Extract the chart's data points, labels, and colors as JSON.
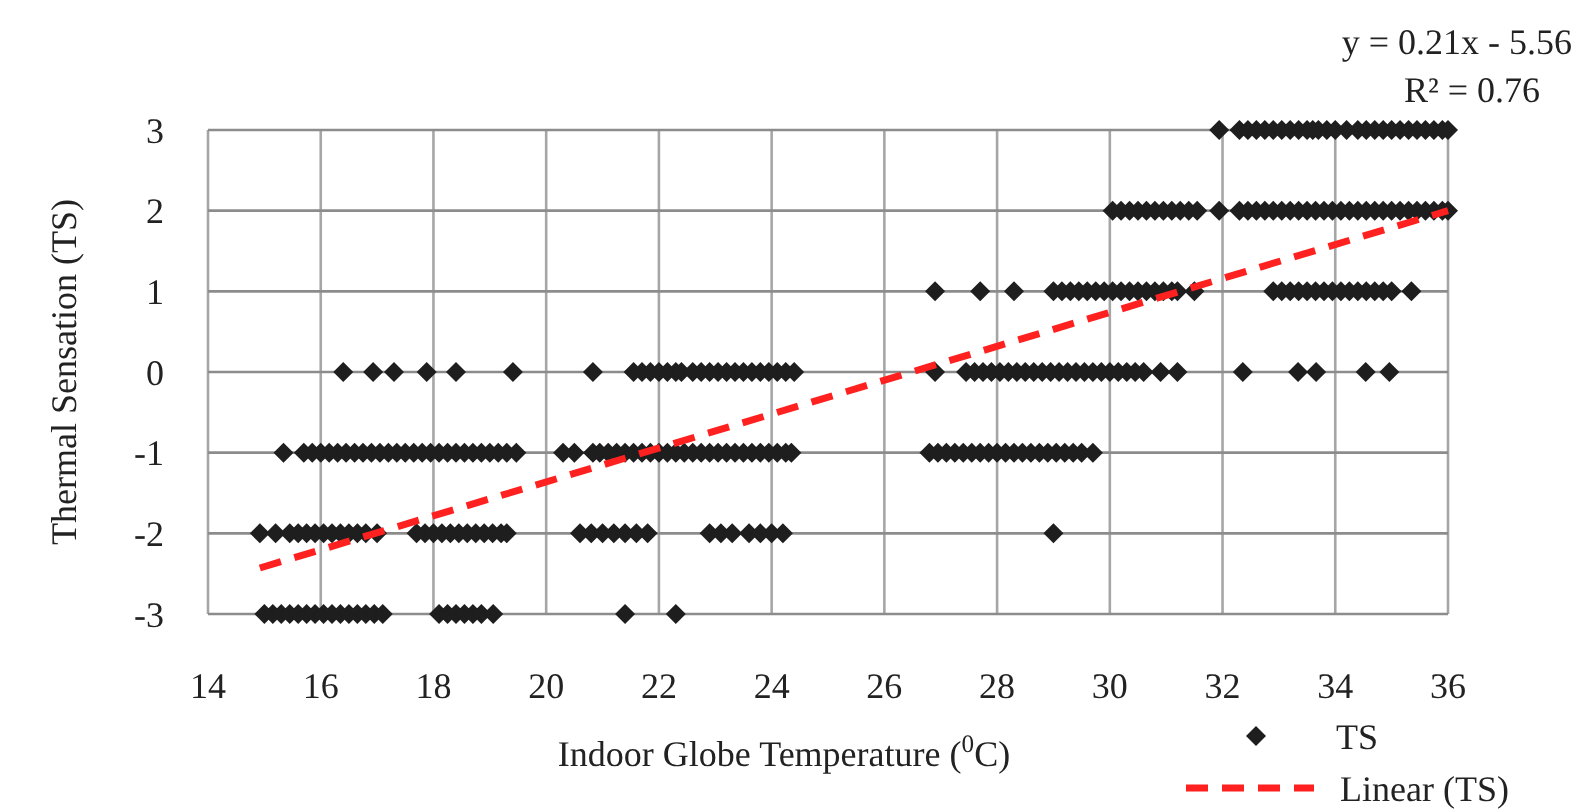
{
  "chart_data": {
    "type": "scatter",
    "xlabel": "Indoor Globe Temperature  ($^{0}$C)",
    "ylabel": "Thermal Sensation (TS)",
    "xlim": [
      14,
      36
    ],
    "xticks": [
      14,
      16,
      18,
      20,
      22,
      24,
      26,
      28,
      30,
      32,
      34,
      36
    ],
    "ylim": [
      -3,
      3
    ],
    "yticks": [
      -3,
      -2,
      -1,
      0,
      1,
      2,
      3
    ],
    "grid": true,
    "legend": "bottom right",
    "annotations": [
      "y = 0.21x - 5.56",
      "R² = 0.76"
    ],
    "series": [
      {
        "name": "TS",
        "marker": "diamond",
        "color": "#1e1e1e",
        "x": [
          31.94,
          32.3,
          32.45,
          32.6,
          32.75,
          32.9,
          33.05,
          33.2,
          33.35,
          33.5,
          33.6,
          33.7,
          33.85,
          34.0,
          34.2,
          34.4,
          34.55,
          34.7,
          34.85,
          35.0,
          35.15,
          35.3,
          35.45,
          35.6,
          35.75,
          35.9,
          36.0,
          30.05,
          30.2,
          30.35,
          30.5,
          30.65,
          30.8,
          30.95,
          31.1,
          31.25,
          31.4,
          31.55,
          31.94,
          32.3,
          32.45,
          32.6,
          32.75,
          32.9,
          33.05,
          33.2,
          33.35,
          33.5,
          33.65,
          33.8,
          33.95,
          34.1,
          34.25,
          34.4,
          34.55,
          34.7,
          34.85,
          35.0,
          35.15,
          35.3,
          35.45,
          35.6,
          35.75,
          35.9,
          36.0,
          26.9,
          27.7,
          28.3,
          29.0,
          29.15,
          29.3,
          29.45,
          29.6,
          29.75,
          29.9,
          30.05,
          30.2,
          30.35,
          30.5,
          30.65,
          30.8,
          30.95,
          31.1,
          31.2,
          31.5,
          32.9,
          33.05,
          33.2,
          33.35,
          33.5,
          33.65,
          33.8,
          33.95,
          34.1,
          34.25,
          34.4,
          34.55,
          34.7,
          34.85,
          35.0,
          35.35,
          16.4,
          16.93,
          17.3,
          17.88,
          18.4,
          19.41,
          20.83,
          21.55,
          21.7,
          21.85,
          22.0,
          22.15,
          22.3,
          22.4,
          22.6,
          22.75,
          22.9,
          23.05,
          23.2,
          23.35,
          23.5,
          23.65,
          23.8,
          23.95,
          24.1,
          24.25,
          24.4,
          26.9,
          27.45,
          27.6,
          27.75,
          27.9,
          28.05,
          28.2,
          28.35,
          28.5,
          28.65,
          28.8,
          28.95,
          29.1,
          29.25,
          29.4,
          29.55,
          29.7,
          29.85,
          30.0,
          30.15,
          30.3,
          30.45,
          30.6,
          30.9,
          31.2,
          32.36,
          33.34,
          33.66,
          34.54,
          34.96,
          15.34,
          15.7,
          15.85,
          16.0,
          16.15,
          16.3,
          16.45,
          16.6,
          16.75,
          16.9,
          17.05,
          17.2,
          17.35,
          17.5,
          17.65,
          17.8,
          17.95,
          18.1,
          18.25,
          18.4,
          18.55,
          18.7,
          18.85,
          19.0,
          19.15,
          19.3,
          19.47,
          20.3,
          20.5,
          20.83,
          20.95,
          21.1,
          21.25,
          21.4,
          21.55,
          21.7,
          21.85,
          22.0,
          22.15,
          22.3,
          22.45,
          22.6,
          22.75,
          22.9,
          23.05,
          23.2,
          23.35,
          23.5,
          23.65,
          23.8,
          23.95,
          24.1,
          24.25,
          24.35,
          26.8,
          26.95,
          27.1,
          27.25,
          27.4,
          27.55,
          27.7,
          27.85,
          28.0,
          28.15,
          28.3,
          28.45,
          28.6,
          28.75,
          28.9,
          29.05,
          29.2,
          29.35,
          29.5,
          29.7,
          14.92,
          15.2,
          15.45,
          15.6,
          15.75,
          15.9,
          16.05,
          16.2,
          16.35,
          16.5,
          16.65,
          16.8,
          17.0,
          17.7,
          17.85,
          18.0,
          18.15,
          18.3,
          18.45,
          18.6,
          18.75,
          18.9,
          19.05,
          19.2,
          19.3,
          20.6,
          20.8,
          21.0,
          21.2,
          21.4,
          21.6,
          21.8,
          22.9,
          23.1,
          23.3,
          23.6,
          23.8,
          24.0,
          24.2,
          29.0,
          15.0,
          15.15,
          15.3,
          15.45,
          15.6,
          15.75,
          15.9,
          16.05,
          16.2,
          16.35,
          16.5,
          16.65,
          16.8,
          16.95,
          17.1,
          18.1,
          18.25,
          18.4,
          18.55,
          18.7,
          18.85,
          19.06,
          21.4,
          22.3
        ],
        "values": [
          3,
          3,
          3,
          3,
          3,
          3,
          3,
          3,
          3,
          3,
          3,
          3,
          3,
          3,
          3,
          3,
          3,
          3,
          3,
          3,
          3,
          3,
          3,
          3,
          3,
          3,
          3,
          2,
          2,
          2,
          2,
          2,
          2,
          2,
          2,
          2,
          2,
          2,
          2,
          2,
          2,
          2,
          2,
          2,
          2,
          2,
          2,
          2,
          2,
          2,
          2,
          2,
          2,
          2,
          2,
          2,
          2,
          2,
          2,
          2,
          2,
          2,
          2,
          2,
          2,
          1,
          1,
          1,
          1,
          1,
          1,
          1,
          1,
          1,
          1,
          1,
          1,
          1,
          1,
          1,
          1,
          1,
          1,
          1,
          1,
          1,
          1,
          1,
          1,
          1,
          1,
          1,
          1,
          1,
          1,
          1,
          1,
          1,
          1,
          1,
          1,
          0,
          0,
          0,
          0,
          0,
          0,
          0,
          0,
          0,
          0,
          0,
          0,
          0,
          0,
          0,
          0,
          0,
          0,
          0,
          0,
          0,
          0,
          0,
          0,
          0,
          0,
          0,
          0,
          0,
          0,
          0,
          0,
          0,
          0,
          0,
          0,
          0,
          0,
          0,
          0,
          0,
          0,
          0,
          0,
          0,
          0,
          0,
          0,
          0,
          0,
          0,
          0,
          0,
          0,
          0,
          0,
          0,
          -1,
          -1,
          -1,
          -1,
          -1,
          -1,
          -1,
          -1,
          -1,
          -1,
          -1,
          -1,
          -1,
          -1,
          -1,
          -1,
          -1,
          -1,
          -1,
          -1,
          -1,
          -1,
          -1,
          -1,
          -1,
          -1,
          -1,
          -1,
          -1,
          -1,
          -1,
          -1,
          -1,
          -1,
          -1,
          -1,
          -1,
          -1,
          -1,
          -1,
          -1,
          -1,
          -1,
          -1,
          -1,
          -1,
          -1,
          -1,
          -1,
          -1,
          -1,
          -1,
          -1,
          -1,
          -1,
          -1,
          -1,
          -1,
          -1,
          -1,
          -1,
          -1,
          -1,
          -1,
          -1,
          -1,
          -1,
          -1,
          -1,
          -1,
          -1,
          -1,
          -1,
          -1,
          -2,
          -2,
          -2,
          -2,
          -2,
          -2,
          -2,
          -2,
          -2,
          -2,
          -2,
          -2,
          -2,
          -2,
          -2,
          -2,
          -2,
          -2,
          -2,
          -2,
          -2,
          -2,
          -2,
          -2,
          -2,
          -2,
          -2,
          -2,
          -2,
          -2,
          -2,
          -2,
          -2,
          -2,
          -2,
          -2,
          -2,
          -2,
          -2,
          -2,
          -3,
          -3,
          -3,
          -3,
          -3,
          -3,
          -3,
          -3,
          -3,
          -3,
          -3,
          -3,
          -3,
          -3,
          -3,
          -3,
          -3,
          -3,
          -3,
          -3,
          -3,
          -3,
          -3,
          -3
        ]
      },
      {
        "name": "Linear (TS)",
        "type": "line",
        "line_style": "dashed",
        "marker": "none",
        "color": "#ff2020",
        "x": [
          14.92,
          36
        ],
        "values": [
          -2.43,
          2.0
        ]
      }
    ]
  }
}
